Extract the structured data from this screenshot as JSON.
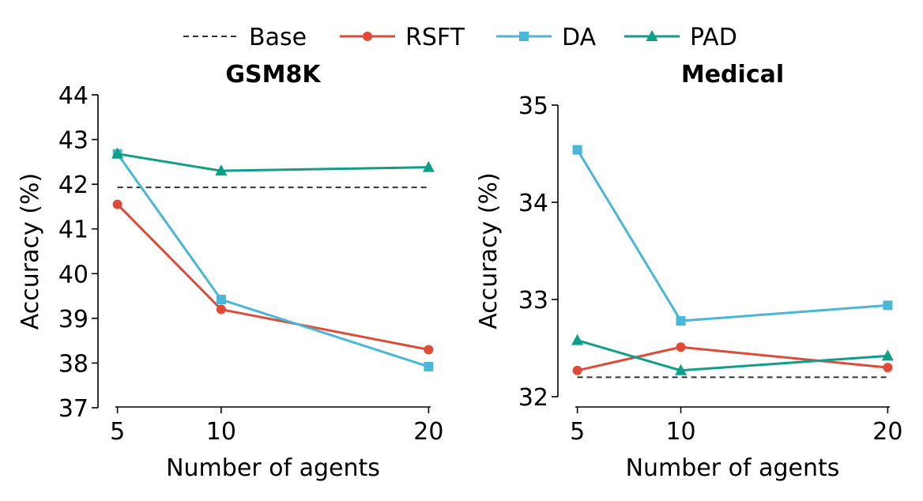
{
  "figure": {
    "legend": {
      "placement": "top-center",
      "entries": [
        {
          "label": "Base",
          "color": "#333333",
          "marker": "none",
          "dash": true
        },
        {
          "label": "RSFT",
          "color": "#e04b37",
          "marker": "circle"
        },
        {
          "label": "DA",
          "color": "#4ab6d8",
          "marker": "square"
        },
        {
          "label": "PAD",
          "color": "#0f9e87",
          "marker": "triangle"
        }
      ]
    }
  },
  "chart_data": [
    {
      "type": "line",
      "title": "GSM8K",
      "xlabel": "Number of agents",
      "ylabel": "Accuracy (%)",
      "x": [
        5,
        10,
        20
      ],
      "xlim": [
        4.9,
        20.1
      ],
      "xticks": [
        "5",
        "10",
        "20"
      ],
      "ylim": [
        37,
        44
      ],
      "yticks": [
        "37",
        "38",
        "39",
        "40",
        "41",
        "42",
        "43",
        "44"
      ],
      "grid": false,
      "base": 41.93,
      "series": [
        {
          "name": "RSFT",
          "values": [
            41.55,
            39.2,
            38.3
          ]
        },
        {
          "name": "DA",
          "values": [
            42.68,
            39.42,
            37.92
          ]
        },
        {
          "name": "PAD",
          "values": [
            42.68,
            42.3,
            42.38
          ]
        }
      ]
    },
    {
      "type": "line",
      "title": "Medical",
      "xlabel": "Number of agents",
      "ylabel": "Accuracy (%)",
      "x": [
        5,
        10,
        20
      ],
      "xlim": [
        4.9,
        20.1
      ],
      "xticks": [
        "5",
        "10",
        "20"
      ],
      "ylim": [
        32,
        35
      ],
      "yticks": [
        "32",
        "33",
        "34",
        "35"
      ],
      "grid": false,
      "base": 32.2,
      "series": [
        {
          "name": "RSFT",
          "values": [
            32.27,
            32.51,
            32.3
          ]
        },
        {
          "name": "DA",
          "values": [
            34.54,
            32.78,
            32.94
          ]
        },
        {
          "name": "PAD",
          "values": [
            32.58,
            32.27,
            32.42
          ]
        }
      ]
    }
  ]
}
